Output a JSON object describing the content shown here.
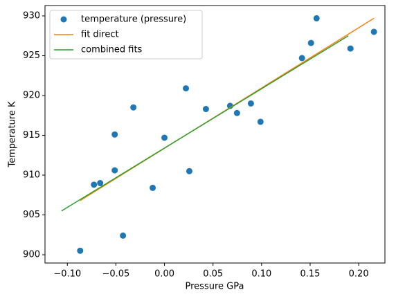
{
  "chart_data": {
    "type": "scatter",
    "xlabel": "Pressure GPa",
    "ylabel": "Temperature K",
    "xlim": [
      -0.123,
      0.227
    ],
    "ylim": [
      898.96,
      931.3
    ],
    "xticks": [
      {
        "value": -0.1,
        "label": "−0.10"
      },
      {
        "value": -0.05,
        "label": "−0.05"
      },
      {
        "value": 0,
        "label": "0.00"
      },
      {
        "value": 0.05,
        "label": "0.05"
      },
      {
        "value": 0.1,
        "label": "0.10"
      },
      {
        "value": 0.15,
        "label": "0.15"
      },
      {
        "value": 0.2,
        "label": "0.20"
      }
    ],
    "yticks": [
      900,
      905,
      910,
      915,
      920,
      925,
      930
    ],
    "legend": "upper left",
    "series": [
      {
        "name": "temperature (pressure)",
        "type": "scatter",
        "color": "#1f77b4",
        "x": [
          -0.0868,
          -0.0726,
          -0.0662,
          -0.0512,
          -0.0512,
          -0.0427,
          -0.032,
          -0.0121,
          0.0,
          0.0221,
          0.0256,
          0.0427,
          0.0676,
          0.0747,
          0.089,
          0.0989,
          0.1416,
          0.1509,
          0.1566,
          0.1915,
          0.2157
        ],
        "values": [
          900.5,
          908.8,
          909.0,
          915.1,
          910.6,
          902.4,
          918.5,
          908.4,
          914.7,
          920.9,
          910.5,
          918.3,
          918.7,
          917.8,
          919.0,
          916.7,
          924.7,
          926.6,
          929.7,
          925.9,
          928.0
        ]
      },
      {
        "name": "fit direct",
        "type": "line",
        "color": "#ff7f0e",
        "x": [
          -0.0868,
          0.2157
        ],
        "values": [
          906.8,
          929.7
        ]
      },
      {
        "name": "combined fits",
        "type": "line",
        "color": "#2ca02c",
        "x": [
          -0.106,
          0.1893
        ],
        "values": [
          905.5,
          927.5
        ]
      }
    ]
  }
}
